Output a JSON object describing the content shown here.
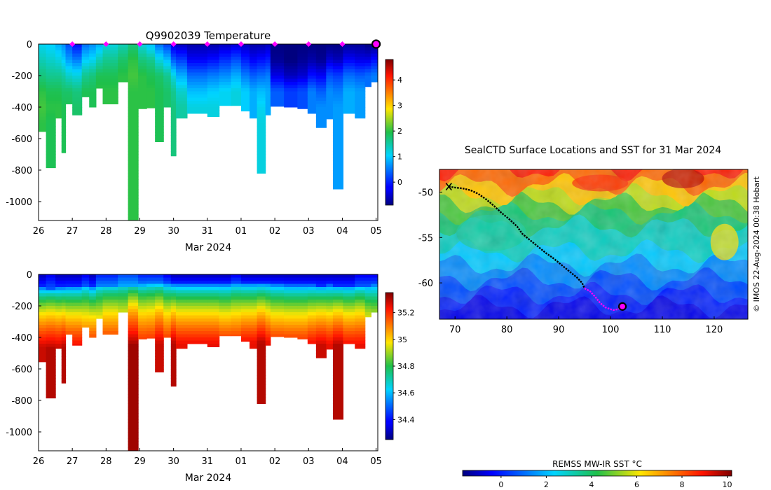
{
  "chart_data": [
    {
      "id": "temp",
      "type": "heatmap",
      "title": "Q9902039  Temperature",
      "xlabel": "Mar 2024",
      "ylabel": "",
      "x_ticks": [
        "26",
        "27",
        "28",
        "29",
        "30",
        "31",
        "01",
        "02",
        "03",
        "04",
        "05"
      ],
      "y_ticks": [
        "0",
        "-200",
        "-400",
        "-600",
        "-800",
        "-1000"
      ],
      "xlim": [
        0,
        10.05
      ],
      "ylim": [
        -1120,
        0
      ],
      "colorbar": {
        "ticks": [
          "0",
          "1",
          "2",
          "3",
          "4"
        ],
        "range": [
          -0.9,
          4.8
        ]
      },
      "marker_x": [
        1,
        2,
        3,
        4,
        5,
        6,
        7,
        8,
        9
      ],
      "current_x": 10,
      "profiles": [
        {
          "x": 0.0,
          "w": 0.22,
          "depth": 555,
          "s": [
            1.1,
            1.4,
            1.7,
            2.0,
            2.1,
            2.0,
            2.0
          ]
        },
        {
          "x": 0.22,
          "w": 0.28,
          "depth": 785,
          "s": [
            1.0,
            1.3,
            1.6,
            1.9,
            2.0,
            1.9,
            1.9
          ]
        },
        {
          "x": 0.5,
          "w": 0.18,
          "depth": 470,
          "s": [
            0.8,
            1.2,
            1.6,
            1.9,
            2.0
          ]
        },
        {
          "x": 0.68,
          "w": 0.12,
          "depth": 690,
          "s": [
            0.6,
            1.0,
            1.5,
            1.8,
            1.9
          ]
        },
        {
          "x": 0.8,
          "w": 0.2,
          "depth": 380,
          "s": [
            0.2,
            0.7,
            1.3,
            1.8,
            1.9
          ]
        },
        {
          "x": 1.0,
          "w": 0.28,
          "depth": 450,
          "s": [
            -0.2,
            0.5,
            1.2,
            1.7,
            1.8
          ]
        },
        {
          "x": 1.28,
          "w": 0.22,
          "depth": 335,
          "s": [
            0.4,
            1.0,
            1.6,
            1.9
          ]
        },
        {
          "x": 1.5,
          "w": 0.2,
          "depth": 400,
          "s": [
            0.6,
            1.1,
            1.7,
            1.9
          ]
        },
        {
          "x": 1.7,
          "w": 0.2,
          "depth": 280,
          "s": [
            0.8,
            1.4,
            1.9,
            2.0
          ]
        },
        {
          "x": 1.9,
          "w": 0.45,
          "depth": 380,
          "s": [
            1.2,
            1.6,
            1.9,
            2.0
          ]
        },
        {
          "x": 2.35,
          "w": 0.3,
          "depth": 240,
          "s": [
            1.4,
            1.8,
            2.0
          ]
        },
        {
          "x": 2.65,
          "w": 0.3,
          "depth": 1120,
          "s": [
            1.7,
            2.0,
            2.1,
            2.0,
            2.0,
            2.0,
            2.0
          ]
        },
        {
          "x": 2.95,
          "w": 0.25,
          "depth": 410,
          "s": [
            1.2,
            1.7,
            2.0,
            2.0
          ]
        },
        {
          "x": 3.2,
          "w": 0.25,
          "depth": 405,
          "s": [
            0.9,
            1.6,
            1.9,
            2.0
          ]
        },
        {
          "x": 3.45,
          "w": 0.25,
          "depth": 620,
          "s": [
            0.4,
            1.2,
            1.8,
            1.9,
            1.9
          ]
        },
        {
          "x": 3.7,
          "w": 0.22,
          "depth": 400,
          "s": [
            0.1,
            0.9,
            1.6,
            1.8
          ]
        },
        {
          "x": 3.92,
          "w": 0.15,
          "depth": 710,
          "s": [
            -0.5,
            0.3,
            1.2,
            1.6,
            1.7
          ]
        },
        {
          "x": 4.07,
          "w": 0.33,
          "depth": 470,
          "s": [
            -0.6,
            0.1,
            0.8,
            1.3,
            1.5
          ]
        },
        {
          "x": 4.4,
          "w": 0.6,
          "depth": 440,
          "s": [
            -0.7,
            -0.3,
            0.4,
            0.9,
            1.2
          ]
        },
        {
          "x": 5.0,
          "w": 0.35,
          "depth": 460,
          "s": [
            -0.7,
            -0.2,
            0.5,
            1.0,
            1.2
          ]
        },
        {
          "x": 5.35,
          "w": 0.35,
          "depth": 390,
          "s": [
            -0.6,
            0.0,
            0.6,
            1.1
          ]
        },
        {
          "x": 5.7,
          "w": 0.3,
          "depth": 390,
          "s": [
            -0.5,
            0.2,
            0.8,
            1.2
          ]
        },
        {
          "x": 6.0,
          "w": 0.25,
          "depth": 425,
          "s": [
            -0.6,
            -0.1,
            0.5,
            1.0
          ]
        },
        {
          "x": 6.25,
          "w": 0.22,
          "depth": 470,
          "s": [
            -0.7,
            -0.3,
            0.3,
            0.8
          ]
        },
        {
          "x": 6.47,
          "w": 0.25,
          "depth": 820,
          "s": [
            -0.7,
            -0.2,
            0.4,
            0.9,
            1.1,
            1.2
          ]
        },
        {
          "x": 6.72,
          "w": 0.15,
          "depth": 450,
          "s": [
            -0.6,
            -0.1,
            0.5,
            0.8
          ]
        },
        {
          "x": 6.87,
          "w": 0.4,
          "depth": 395,
          "s": [
            -0.9,
            -0.8,
            -0.4,
            0.3
          ]
        },
        {
          "x": 7.27,
          "w": 0.4,
          "depth": 400,
          "s": [
            -0.9,
            -0.9,
            -0.6,
            0.1
          ]
        },
        {
          "x": 7.67,
          "w": 0.3,
          "depth": 410,
          "s": [
            -0.9,
            -0.8,
            -0.5,
            0.2
          ]
        },
        {
          "x": 7.97,
          "w": 0.25,
          "depth": 440,
          "s": [
            -0.9,
            -0.7,
            -0.2,
            0.5
          ]
        },
        {
          "x": 8.22,
          "w": 0.3,
          "depth": 530,
          "s": [
            -0.9,
            -0.8,
            -0.3,
            0.3,
            0.6
          ]
        },
        {
          "x": 8.52,
          "w": 0.2,
          "depth": 475,
          "s": [
            -0.9,
            -0.5,
            0.2,
            0.6
          ]
        },
        {
          "x": 8.72,
          "w": 0.3,
          "depth": 920,
          "s": [
            -0.9,
            -0.6,
            0.1,
            0.5,
            0.7,
            0.7,
            0.7
          ]
        },
        {
          "x": 9.02,
          "w": 0.35,
          "depth": 440,
          "s": [
            -0.8,
            -0.3,
            0.4,
            0.8
          ]
        },
        {
          "x": 9.37,
          "w": 0.3,
          "depth": 470,
          "s": [
            -0.8,
            -0.4,
            0.3,
            0.7
          ]
        },
        {
          "x": 9.67,
          "w": 0.18,
          "depth": 270,
          "s": [
            -0.9,
            -0.4,
            0.4
          ]
        },
        {
          "x": 9.85,
          "w": 0.2,
          "depth": 240,
          "s": [
            -0.9,
            -0.2,
            0.5
          ]
        }
      ]
    },
    {
      "id": "sal",
      "type": "heatmap",
      "title": "",
      "xlabel": "Mar 2024",
      "ylabel": "",
      "x_ticks": [
        "26",
        "27",
        "28",
        "29",
        "30",
        "31",
        "01",
        "02",
        "03",
        "04",
        "05"
      ],
      "y_ticks": [
        "0",
        "-200",
        "-400",
        "-600",
        "-800",
        "-1000"
      ],
      "xlim": [
        0,
        10.05
      ],
      "ylim": [
        -1120,
        0
      ],
      "colorbar": {
        "ticks": [
          "34.4",
          "34.6",
          "34.8",
          "35",
          "35.2"
        ],
        "range": [
          34.25,
          35.35
        ]
      },
      "profiles": [
        {
          "x": 0.0,
          "w": 0.22,
          "depth": 555,
          "top": 34.3,
          "thermo": 80,
          "deep": 35.28
        },
        {
          "x": 0.22,
          "w": 0.28,
          "depth": 785,
          "top": 34.35,
          "thermo": 90,
          "deep": 35.3
        },
        {
          "x": 0.5,
          "w": 0.18,
          "depth": 470,
          "top": 34.3,
          "thermo": 80,
          "deep": 35.28
        },
        {
          "x": 0.68,
          "w": 0.12,
          "depth": 690,
          "top": 34.3,
          "thermo": 80,
          "deep": 35.3
        },
        {
          "x": 0.8,
          "w": 0.2,
          "depth": 380,
          "top": 34.3,
          "thermo": 75,
          "deep": 35.25
        },
        {
          "x": 1.0,
          "w": 0.28,
          "depth": 450,
          "top": 34.3,
          "thermo": 75,
          "deep": 35.25
        },
        {
          "x": 1.28,
          "w": 0.22,
          "depth": 335,
          "top": 34.35,
          "thermo": 70,
          "deep": 35.2
        },
        {
          "x": 1.5,
          "w": 0.2,
          "depth": 400,
          "top": 34.3,
          "thermo": 75,
          "deep": 35.22
        },
        {
          "x": 1.7,
          "w": 0.2,
          "depth": 280,
          "top": 34.4,
          "thermo": 70,
          "deep": 35.15
        },
        {
          "x": 1.9,
          "w": 0.45,
          "depth": 380,
          "top": 34.4,
          "thermo": 70,
          "deep": 35.22
        },
        {
          "x": 2.35,
          "w": 0.3,
          "depth": 240,
          "top": 34.45,
          "thermo": 70,
          "deep": 35.15
        },
        {
          "x": 2.65,
          "w": 0.3,
          "depth": 1120,
          "top": 34.45,
          "thermo": 70,
          "deep": 35.32
        },
        {
          "x": 2.95,
          "w": 0.25,
          "depth": 410,
          "top": 34.4,
          "thermo": 65,
          "deep": 35.22
        },
        {
          "x": 3.2,
          "w": 0.25,
          "depth": 405,
          "top": 34.4,
          "thermo": 60,
          "deep": 35.22
        },
        {
          "x": 3.45,
          "w": 0.25,
          "depth": 620,
          "top": 34.4,
          "thermo": 60,
          "deep": 35.28
        },
        {
          "x": 3.7,
          "w": 0.22,
          "depth": 400,
          "top": 34.35,
          "thermo": 60,
          "deep": 35.22
        },
        {
          "x": 3.92,
          "w": 0.15,
          "depth": 710,
          "top": 34.3,
          "thermo": 60,
          "deep": 35.3
        },
        {
          "x": 4.07,
          "w": 0.33,
          "depth": 470,
          "top": 34.3,
          "thermo": 60,
          "deep": 35.25
        },
        {
          "x": 4.4,
          "w": 0.6,
          "depth": 440,
          "top": 34.3,
          "thermo": 60,
          "deep": 35.25
        },
        {
          "x": 5.0,
          "w": 0.35,
          "depth": 460,
          "top": 34.3,
          "thermo": 60,
          "deep": 35.25
        },
        {
          "x": 5.35,
          "w": 0.35,
          "depth": 390,
          "top": 34.3,
          "thermo": 60,
          "deep": 35.22
        },
        {
          "x": 5.7,
          "w": 0.3,
          "depth": 390,
          "top": 34.35,
          "thermo": 60,
          "deep": 35.22
        },
        {
          "x": 6.0,
          "w": 0.25,
          "depth": 425,
          "top": 34.3,
          "thermo": 55,
          "deep": 35.25
        },
        {
          "x": 6.25,
          "w": 0.22,
          "depth": 470,
          "top": 34.3,
          "thermo": 55,
          "deep": 35.25
        },
        {
          "x": 6.47,
          "w": 0.25,
          "depth": 820,
          "top": 34.3,
          "thermo": 55,
          "deep": 35.3
        },
        {
          "x": 6.72,
          "w": 0.15,
          "depth": 450,
          "top": 34.3,
          "thermo": 55,
          "deep": 35.25
        },
        {
          "x": 6.87,
          "w": 0.4,
          "depth": 395,
          "top": 34.3,
          "thermo": 60,
          "deep": 35.22
        },
        {
          "x": 7.27,
          "w": 0.4,
          "depth": 400,
          "top": 34.3,
          "thermo": 65,
          "deep": 35.22
        },
        {
          "x": 7.67,
          "w": 0.3,
          "depth": 410,
          "top": 34.3,
          "thermo": 65,
          "deep": 35.22
        },
        {
          "x": 7.97,
          "w": 0.25,
          "depth": 440,
          "top": 34.3,
          "thermo": 65,
          "deep": 35.25
        },
        {
          "x": 8.22,
          "w": 0.3,
          "depth": 530,
          "top": 34.3,
          "thermo": 70,
          "deep": 35.28
        },
        {
          "x": 8.52,
          "w": 0.2,
          "depth": 475,
          "top": 34.3,
          "thermo": 65,
          "deep": 35.25
        },
        {
          "x": 8.72,
          "w": 0.3,
          "depth": 920,
          "top": 34.3,
          "thermo": 70,
          "deep": 35.3
        },
        {
          "x": 9.02,
          "w": 0.35,
          "depth": 440,
          "top": 34.3,
          "thermo": 70,
          "deep": 35.25
        },
        {
          "x": 9.37,
          "w": 0.3,
          "depth": 470,
          "top": 34.35,
          "thermo": 70,
          "deep": 35.25
        },
        {
          "x": 9.67,
          "w": 0.18,
          "depth": 270,
          "top": 34.35,
          "thermo": 70,
          "deep": 35.15
        },
        {
          "x": 9.85,
          "w": 0.2,
          "depth": 240,
          "top": 34.35,
          "thermo": 65,
          "deep": 35.12
        }
      ]
    },
    {
      "id": "sst_map",
      "type": "heatmap",
      "title": "SealCTD Surface Locations and SST for 31 Mar 2024",
      "credit": "© IMOS 22-Aug-2024 00:38 Hobart",
      "x_ticks": [
        "70",
        "80",
        "90",
        "100",
        "110",
        "120"
      ],
      "x_tick_values": [
        70,
        80,
        90,
        100,
        110,
        120
      ],
      "y_ticks": [
        "-50",
        "-55",
        "-60"
      ],
      "y_tick_values": [
        -50,
        -55,
        -60
      ],
      "xlim": [
        67,
        126.5
      ],
      "ylim": [
        -64,
        -47.5
      ],
      "colorbar": {
        "label": "REMSS MW-IR SST °C",
        "ticks": [
          "0",
          "2",
          "4",
          "6",
          "8",
          "10"
        ],
        "tick_values": [
          0,
          2,
          4,
          6,
          8,
          10
        ],
        "range": [
          -1.7,
          10.2
        ]
      },
      "track_black": [
        [
          68.8,
          -49.4
        ],
        [
          70.0,
          -49.5
        ],
        [
          71.5,
          -49.6
        ],
        [
          73.0,
          -49.8
        ],
        [
          74.5,
          -50.2
        ],
        [
          76.0,
          -50.8
        ],
        [
          77.5,
          -51.5
        ],
        [
          79.0,
          -52.3
        ],
        [
          80.5,
          -53.0
        ],
        [
          82.0,
          -53.8
        ],
        [
          83.0,
          -54.6
        ],
        [
          84.5,
          -55.3
        ],
        [
          86.0,
          -56.0
        ],
        [
          87.5,
          -56.7
        ],
        [
          89.0,
          -57.3
        ],
        [
          90.5,
          -58.0
        ],
        [
          92.0,
          -58.7
        ],
        [
          93.5,
          -59.4
        ],
        [
          94.5,
          -60.0
        ],
        [
          95.0,
          -60.6
        ]
      ],
      "track_magenta": [
        [
          95.0,
          -60.6
        ],
        [
          96.0,
          -60.9
        ],
        [
          97.0,
          -61.5
        ],
        [
          98.0,
          -62.2
        ],
        [
          99.0,
          -62.7
        ],
        [
          100.5,
          -63.0
        ],
        [
          101.5,
          -62.9
        ],
        [
          102.3,
          -62.6
        ]
      ],
      "current_position": [
        102.3,
        -62.6
      ],
      "start_position": [
        68.8,
        -49.4
      ]
    }
  ]
}
